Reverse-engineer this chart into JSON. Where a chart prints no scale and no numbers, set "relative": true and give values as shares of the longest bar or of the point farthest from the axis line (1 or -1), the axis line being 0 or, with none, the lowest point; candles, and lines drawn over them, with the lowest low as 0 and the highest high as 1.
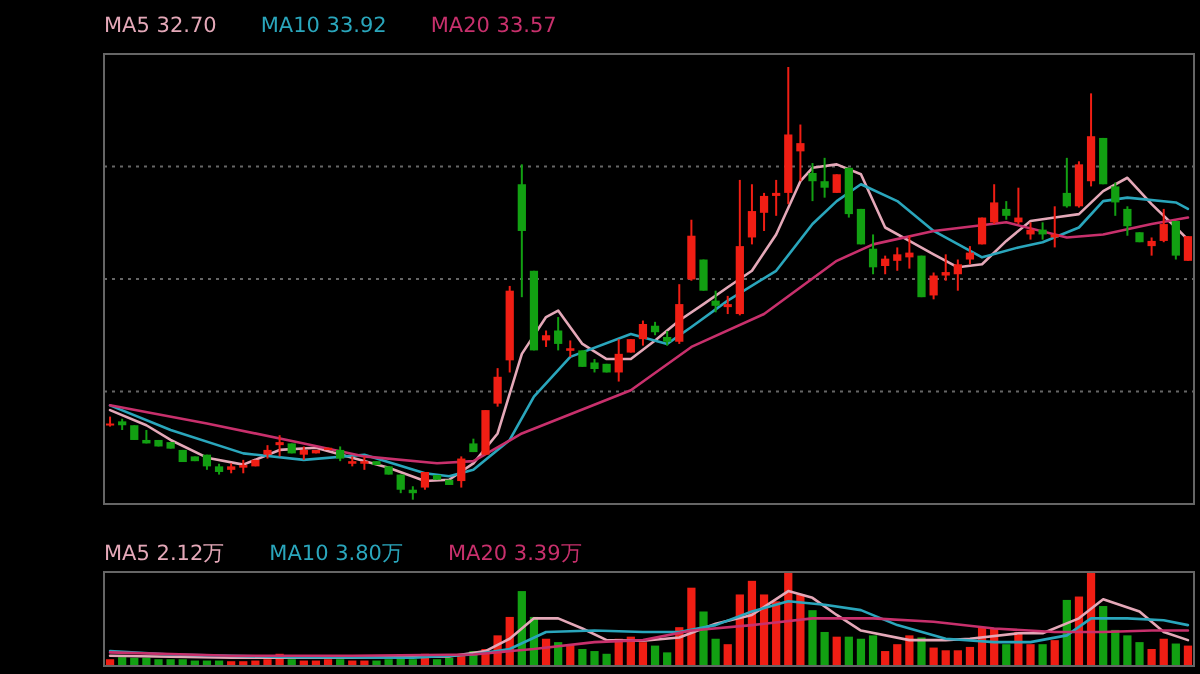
{
  "chart_data": [
    {
      "type": "candlestick",
      "relative": true,
      "grid": "y",
      "legend": "top",
      "categories": [
        null,
        null,
        null,
        null,
        null,
        null,
        null,
        null,
        null,
        null,
        null,
        null,
        null,
        null,
        null,
        null,
        null,
        null,
        null,
        null,
        null,
        null,
        null,
        null,
        null,
        null,
        null,
        null,
        null,
        null,
        null,
        null,
        null,
        null,
        null,
        null,
        null,
        null,
        null,
        null,
        null,
        null,
        null,
        null,
        null,
        null,
        null,
        null,
        null,
        null,
        null,
        null,
        null,
        null,
        null,
        null,
        null,
        null,
        null,
        null,
        null,
        null,
        null,
        null,
        null,
        null,
        null,
        null,
        null,
        null,
        null,
        null,
        null,
        null,
        null,
        null,
        null,
        null,
        null,
        null,
        null,
        null,
        null,
        null,
        null,
        null,
        null,
        null,
        null,
        null
      ],
      "ohlc": [
        [
          0.172,
          0.192,
          0.169,
          0.176
        ],
        [
          0.181,
          0.187,
          0.161,
          0.172
        ],
        [
          0.172,
          0.172,
          0.138,
          0.138
        ],
        [
          0.138,
          0.161,
          0.13,
          0.13
        ],
        [
          0.138,
          0.138,
          0.123,
          0.123
        ],
        [
          0.133,
          0.133,
          0.118,
          0.118
        ],
        [
          0.115,
          0.115,
          0.087,
          0.087
        ],
        [
          0.1,
          0.1,
          0.089,
          0.089
        ],
        [
          0.104,
          0.104,
          0.069,
          0.077
        ],
        [
          0.077,
          0.083,
          0.058,
          0.064
        ],
        [
          0.069,
          0.084,
          0.061,
          0.077
        ],
        [
          0.074,
          0.092,
          0.061,
          0.08
        ],
        [
          0.077,
          0.092,
          0.077,
          0.092
        ],
        [
          0.104,
          0.126,
          0.095,
          0.115
        ],
        [
          0.126,
          0.149,
          0.1,
          0.133
        ],
        [
          0.13,
          0.13,
          0.107,
          0.107
        ],
        [
          0.104,
          0.123,
          0.092,
          0.115
        ],
        [
          0.107,
          0.115,
          0.107,
          0.115
        ],
        [
          0.115,
          0.12,
          0.115,
          0.12
        ],
        [
          0.115,
          0.123,
          0.089,
          0.095
        ],
        [
          0.083,
          0.1,
          0.077,
          0.089
        ],
        [
          0.083,
          0.1,
          0.069,
          0.089
        ],
        [
          0.089,
          0.089,
          0.08,
          0.08
        ],
        [
          0.077,
          0.077,
          0.058,
          0.058
        ],
        [
          0.058,
          0.058,
          0.015,
          0.023
        ],
        [
          0.023,
          0.031,
          0.0,
          0.015
        ],
        [
          0.028,
          0.064,
          0.023,
          0.064
        ],
        [
          0.057,
          0.057,
          0.046,
          0.046
        ],
        [
          0.046,
          0.046,
          0.034,
          0.034
        ],
        [
          0.043,
          0.1,
          0.028,
          0.095
        ],
        [
          0.13,
          0.141,
          0.11,
          0.11
        ],
        [
          0.104,
          0.207,
          0.104,
          0.207
        ],
        [
          0.222,
          0.304,
          0.215,
          0.284
        ],
        [
          0.322,
          0.494,
          0.294,
          0.483
        ],
        [
          0.729,
          0.775,
          0.468,
          0.621
        ],
        [
          0.529,
          0.529,
          0.345,
          0.345
        ],
        [
          0.368,
          0.391,
          0.353,
          0.38
        ],
        [
          0.391,
          0.422,
          0.345,
          0.36
        ],
        [
          0.344,
          0.368,
          0.33,
          0.35
        ],
        [
          0.345,
          0.345,
          0.307,
          0.307
        ],
        [
          0.317,
          0.325,
          0.294,
          0.302
        ],
        [
          0.314,
          0.314,
          0.294,
          0.294
        ],
        [
          0.294,
          0.371,
          0.273,
          0.337
        ],
        [
          0.34,
          0.371,
          0.34,
          0.371
        ],
        [
          0.371,
          0.414,
          0.356,
          0.406
        ],
        [
          0.402,
          0.411,
          0.38,
          0.387
        ],
        [
          0.376,
          0.39,
          0.356,
          0.365
        ],
        [
          0.365,
          0.498,
          0.36,
          0.452
        ],
        [
          0.509,
          0.647,
          0.506,
          0.61
        ],
        [
          0.555,
          0.555,
          0.483,
          0.483
        ],
        [
          0.46,
          0.483,
          0.433,
          0.448
        ],
        [
          0.445,
          0.471,
          0.429,
          0.452
        ],
        [
          0.429,
          0.739,
          0.426,
          0.586
        ],
        [
          0.606,
          0.729,
          0.59,
          0.667
        ],
        [
          0.663,
          0.709,
          0.621,
          0.702
        ],
        [
          0.702,
          0.739,
          0.656,
          0.709
        ],
        [
          0.709,
          1,
          0.683,
          0.844
        ],
        [
          0.805,
          0.867,
          0.736,
          0.824
        ],
        [
          0.755,
          0.778,
          0.69,
          0.736
        ],
        [
          0.736,
          0.79,
          0.698,
          0.721
        ],
        [
          0.709,
          0.752,
          0.709,
          0.752
        ],
        [
          0.767,
          0.767,
          0.652,
          0.66
        ],
        [
          0.672,
          0.672,
          0.59,
          0.59
        ],
        [
          0.58,
          0.613,
          0.521,
          0.537
        ],
        [
          0.54,
          0.564,
          0.521,
          0.557
        ],
        [
          0.552,
          0.583,
          0.529,
          0.567
        ],
        [
          0.56,
          0.61,
          0.534,
          0.571
        ],
        [
          0.564,
          0.564,
          0.468,
          0.468
        ],
        [
          0.472,
          0.525,
          0.463,
          0.518
        ],
        [
          0.518,
          0.567,
          0.506,
          0.526
        ],
        [
          0.521,
          0.555,
          0.483,
          0.544
        ],
        [
          0.555,
          0.586,
          0.544,
          0.571
        ],
        [
          0.59,
          0.652,
          0.59,
          0.652
        ],
        [
          0.641,
          0.729,
          0.637,
          0.687
        ],
        [
          0.672,
          0.69,
          0.647,
          0.656
        ],
        [
          0.641,
          0.721,
          0.637,
          0.652
        ],
        [
          0.613,
          0.641,
          0.601,
          0.624
        ],
        [
          0.624,
          0.641,
          0.601,
          0.613
        ],
        [
          0.606,
          0.678,
          0.583,
          0.613
        ],
        [
          0.709,
          0.79,
          0.675,
          0.678
        ],
        [
          0.678,
          0.782,
          0.675,
          0.775
        ],
        [
          0.736,
          0.939,
          0.724,
          0.84
        ],
        [
          0.836,
          0.836,
          0.729,
          0.729
        ],
        [
          0.724,
          0.733,
          0.656,
          0.687
        ],
        [
          0.672,
          0.678,
          0.61,
          0.632
        ],
        [
          0.618,
          0.618,
          0.595,
          0.595
        ],
        [
          0.586,
          0.606,
          0.564,
          0.598
        ],
        [
          0.598,
          0.672,
          0.595,
          0.637
        ],
        [
          0.644,
          0.644,
          0.555,
          0.564
        ],
        [
          0.552,
          0.609,
          0.552,
          0.609
        ]
      ],
      "colors": [
        "#f01e14",
        "#12a012",
        "#12a012",
        "#12a012",
        "#12a012",
        "#12a012",
        "#12a012",
        "#12a012",
        "#12a012",
        "#12a012",
        "#f01e14",
        "#f01e14",
        "#f01e14",
        "#f01e14",
        "#f01e14",
        "#12a012",
        "#f01e14",
        "#f01e14",
        "#f01e14",
        "#12a012",
        "#f01e14",
        "#f01e14",
        "#12a012",
        "#12a012",
        "#12a012",
        "#12a012",
        "#f01e14",
        "#12a012",
        "#12a012",
        "#f01e14",
        "#12a012",
        "#f01e14",
        "#f01e14",
        "#f01e14",
        "#12a012",
        "#12a012",
        "#f01e14",
        "#12a012",
        "#f01e14",
        "#12a012",
        "#12a012",
        "#12a012",
        "#f01e14",
        "#f01e14",
        "#f01e14",
        "#12a012",
        "#12a012",
        "#f01e14",
        "#f01e14",
        "#12a012",
        "#12a012",
        "#f01e14",
        "#f01e14",
        "#f01e14",
        "#f01e14",
        "#f01e14",
        "#f01e14",
        "#f01e14",
        "#12a012",
        "#12a012",
        "#f01e14",
        "#12a012",
        "#12a012",
        "#12a012",
        "#f01e14",
        "#f01e14",
        "#f01e14",
        "#12a012",
        "#f01e14",
        "#f01e14",
        "#f01e14",
        "#f01e14",
        "#f01e14",
        "#f01e14",
        "#12a012",
        "#f01e14",
        "#f01e14",
        "#12a012",
        "#f01e14",
        "#12a012",
        "#f01e14",
        "#f01e14",
        "#12a012",
        "#12a012",
        "#12a012",
        "#12a012",
        "#f01e14",
        "#f01e14",
        "#12a012",
        "#f01e14"
      ],
      "series": [
        {
          "name": "MA5 32.70",
          "type": "line",
          "color": "#e4a8b8",
          "values": [
            0.207,
            null,
            null,
            0.172,
            null,
            0.138,
            null,
            null,
            0.097,
            null,
            null,
            0.081,
            null,
            null,
            0.115,
            null,
            null,
            0.12,
            null,
            null,
            0.097,
            null,
            null,
            0.074,
            null,
            null,
            0.043,
            null,
            0.046,
            null,
            0.084,
            null,
            0.153,
            null,
            0.337,
            null,
            0.422,
            0.437,
            null,
            0.36,
            null,
            0.325,
            null,
            0.325,
            null,
            0.368,
            null,
            0.414,
            null,
            0.452,
            null,
            0.491,
            null,
            0.529,
            null,
            0.613,
            null,
            0.736,
            0.767,
            null,
            0.775,
            null,
            0.752,
            null,
            0.629,
            null,
            0.598,
            null,
            0.567,
            null,
            0.537,
            null,
            0.544,
            null,
            0.598,
            null,
            0.644,
            null,
            0.652,
            null,
            0.66,
            null,
            0.713,
            null,
            0.744,
            null,
            0.683,
            null,
            0.629,
            0.601
          ]
        },
        {
          "name": "MA10 33.92",
          "type": "line",
          "color": "#2aa6bc",
          "values": [
            0.218,
            null,
            null,
            null,
            null,
            0.161,
            null,
            null,
            null,
            null,
            null,
            0.107,
            null,
            null,
            null,
            null,
            0.092,
            null,
            null,
            null,
            null,
            0.104,
            null,
            null,
            null,
            null,
            0.061,
            null,
            0.054,
            null,
            0.069,
            null,
            null,
            0.138,
            null,
            0.238,
            null,
            null,
            0.33,
            null,
            null,
            null,
            null,
            0.383,
            null,
            null,
            0.36,
            null,
            0.399,
            null,
            null,
            0.46,
            null,
            null,
            null,
            0.529,
            null,
            null,
            0.637,
            null,
            0.69,
            null,
            0.729,
            null,
            null,
            0.69,
            null,
            null,
            0.621,
            null,
            null,
            null,
            0.56,
            null,
            null,
            0.583,
            null,
            0.595,
            null,
            null,
            0.629,
            null,
            0.69,
            null,
            0.698,
            null,
            null,
            null,
            0.687,
            0.672
          ]
        },
        {
          "name": "MA20 33.57",
          "type": "line",
          "color": "#c8306c",
          "values": [
            0.218,
            null,
            null,
            null,
            null,
            null,
            null,
            null,
            0.176,
            null,
            null,
            null,
            null,
            null,
            null,
            null,
            0.13,
            null,
            null,
            null,
            null,
            0.1,
            null,
            null,
            null,
            null,
            null,
            0.084,
            null,
            null,
            0.089,
            null,
            null,
            null,
            0.153,
            null,
            null,
            null,
            null,
            null,
            null,
            null,
            null,
            0.253,
            null,
            null,
            null,
            null,
            0.353,
            null,
            null,
            null,
            null,
            null,
            0.429,
            null,
            null,
            null,
            null,
            null,
            0.552,
            null,
            null,
            0.59,
            null,
            null,
            null,
            null,
            0.621,
            null,
            null,
            null,
            null,
            null,
            0.641,
            null,
            null,
            null,
            null,
            0.606,
            null,
            null,
            0.613,
            null,
            null,
            null,
            0.637,
            null,
            null,
            0.652
          ]
        }
      ]
    },
    {
      "type": "bar",
      "relative": true,
      "legend": "top",
      "categories": [
        null,
        null,
        null,
        null,
        null,
        null,
        null,
        null,
        null,
        null,
        null,
        null,
        null,
        null,
        null,
        null,
        null,
        null,
        null,
        null,
        null,
        null,
        null,
        null,
        null,
        null,
        null,
        null,
        null,
        null,
        null,
        null,
        null,
        null,
        null,
        null,
        null,
        null,
        null,
        null,
        null,
        null,
        null,
        null,
        null,
        null,
        null,
        null,
        null,
        null,
        null,
        null,
        null,
        null,
        null,
        null,
        null,
        null,
        null,
        null,
        null,
        null,
        null,
        null,
        null,
        null,
        null,
        null,
        null,
        null,
        null,
        null,
        null,
        null,
        null,
        null,
        null,
        null,
        null,
        null,
        null,
        null,
        null,
        null,
        null,
        null,
        null,
        null,
        null,
        null
      ],
      "series": [
        {
          "type": "bar",
          "values": [
            0.072,
            0.094,
            0.087,
            0.087,
            0.072,
            0.072,
            0.072,
            0.058,
            0.058,
            0.058,
            0.051,
            0.051,
            0.058,
            0.072,
            0.13,
            0.072,
            0.058,
            0.058,
            0.072,
            0.072,
            0.058,
            0.058,
            0.058,
            0.072,
            0.101,
            0.072,
            0.13,
            0.072,
            0.087,
            0.13,
            0.159,
            0.181,
            0.326,
            0.522,
            0.797,
            0.522,
            0.29,
            0.254,
            0.232,
            0.181,
            0.159,
            0.13,
            0.29,
            0.312,
            0.254,
            0.217,
            0.145,
            0.413,
            0.833,
            0.58,
            0.29,
            0.232,
            0.761,
            0.906,
            0.761,
            0.688,
            1,
            0.761,
            0.594,
            0.362,
            0.312,
            0.312,
            0.29,
            0.326,
            0.159,
            0.232,
            0.326,
            0.304,
            0.196,
            0.167,
            0.167,
            0.203,
            0.413,
            0.399,
            0.232,
            0.362,
            0.232,
            0.232,
            0.275,
            0.703,
            0.739,
            1,
            0.638,
            0.384,
            0.326,
            0.254,
            0.181,
            0.29,
            0.239,
            0.217
          ],
          "colors": [
            "#f01e14",
            "#12a012",
            "#12a012",
            "#12a012",
            "#12a012",
            "#12a012",
            "#12a012",
            "#12a012",
            "#12a012",
            "#12a012",
            "#f01e14",
            "#f01e14",
            "#f01e14",
            "#f01e14",
            "#f01e14",
            "#12a012",
            "#f01e14",
            "#f01e14",
            "#f01e14",
            "#12a012",
            "#f01e14",
            "#f01e14",
            "#12a012",
            "#12a012",
            "#12a012",
            "#12a012",
            "#f01e14",
            "#12a012",
            "#12a012",
            "#f01e14",
            "#12a012",
            "#f01e14",
            "#f01e14",
            "#f01e14",
            "#12a012",
            "#12a012",
            "#f01e14",
            "#12a012",
            "#f01e14",
            "#12a012",
            "#12a012",
            "#12a012",
            "#f01e14",
            "#f01e14",
            "#f01e14",
            "#12a012",
            "#12a012",
            "#f01e14",
            "#f01e14",
            "#12a012",
            "#12a012",
            "#f01e14",
            "#f01e14",
            "#f01e14",
            "#f01e14",
            "#f01e14",
            "#f01e14",
            "#f01e14",
            "#12a012",
            "#12a012",
            "#f01e14",
            "#12a012",
            "#12a012",
            "#12a012",
            "#f01e14",
            "#f01e14",
            "#f01e14",
            "#12a012",
            "#f01e14",
            "#f01e14",
            "#f01e14",
            "#f01e14",
            "#f01e14",
            "#f01e14",
            "#12a012",
            "#f01e14",
            "#f01e14",
            "#12a012",
            "#f01e14",
            "#12a012",
            "#f01e14",
            "#f01e14",
            "#12a012",
            "#12a012",
            "#12a012",
            "#12a012",
            "#f01e14",
            "#f01e14",
            "#12a012",
            "#f01e14"
          ]
        },
        {
          "name": "MA5 2.12万",
          "type": "line",
          "color": "#e4a8b8",
          "values": [
            0.109,
            null,
            null,
            null,
            null,
            null,
            null,
            null,
            null,
            null,
            0.087,
            null,
            null,
            null,
            null,
            null,
            null,
            null,
            null,
            null,
            0.087,
            null,
            null,
            null,
            null,
            null,
            null,
            null,
            0.101,
            null,
            null,
            0.159,
            null,
            0.29,
            null,
            0.507,
            null,
            0.507,
            null,
            0.399,
            null,
            0.275,
            null,
            null,
            0.268,
            null,
            null,
            0.304,
            null,
            null,
            0.449,
            null,
            null,
            0.543,
            null,
            null,
            0.797,
            null,
            0.725,
            null,
            0.543,
            null,
            0.377,
            null,
            null,
            null,
            0.275,
            null,
            null,
            0.275,
            null,
            0.29,
            null,
            null,
            null,
            0.348,
            null,
            0.348,
            null,
            null,
            0.507,
            null,
            0.71,
            null,
            null,
            0.58,
            null,
            0.362,
            null,
            0.275
          ]
        },
        {
          "name": "MA10 3.80万",
          "type": "line",
          "color": "#2aa6bc",
          "values": [
            0.159,
            null,
            null,
            null,
            null,
            0.123,
            null,
            null,
            null,
            null,
            null,
            null,
            null,
            null,
            null,
            0.094,
            null,
            null,
            null,
            null,
            null,
            null,
            null,
            null,
            null,
            0.087,
            null,
            null,
            null,
            null,
            0.123,
            null,
            null,
            0.181,
            null,
            null,
            0.362,
            null,
            null,
            null,
            0.377,
            null,
            null,
            null,
            0.362,
            null,
            null,
            0.362,
            null,
            null,
            0.435,
            null,
            null,
            0.58,
            null,
            null,
            0.688,
            null,
            null,
            0.652,
            null,
            null,
            0.594,
            null,
            null,
            0.435,
            null,
            null,
            null,
            0.29,
            null,
            null,
            null,
            0.254,
            null,
            null,
            0.254,
            null,
            null,
            0.326,
            null,
            0.507,
            null,
            null,
            0.507,
            null,
            null,
            0.486,
            null,
            0.435
          ]
        },
        {
          "name": "MA20 3.39万",
          "type": "line",
          "color": "#c8306c",
          "values": [
            0.145,
            null,
            null,
            null,
            null,
            null,
            null,
            null,
            null,
            null,
            0.109,
            null,
            null,
            null,
            null,
            null,
            null,
            null,
            null,
            null,
            0.109,
            null,
            null,
            null,
            null,
            null,
            null,
            null,
            null,
            null,
            0.123,
            null,
            null,
            null,
            null,
            0.181,
            null,
            null,
            null,
            null,
            0.254,
            null,
            null,
            null,
            0.275,
            null,
            null,
            null,
            0.377,
            null,
            null,
            null,
            null,
            0.435,
            null,
            null,
            null,
            null,
            0.507,
            null,
            null,
            null,
            null,
            0.507,
            null,
            null,
            null,
            null,
            0.471,
            null,
            null,
            null,
            null,
            0.399,
            null,
            null,
            null,
            null,
            0.362,
            null,
            null,
            null,
            0.362,
            null,
            null,
            null,
            0.377,
            null,
            null,
            0.377
          ]
        }
      ]
    }
  ]
}
